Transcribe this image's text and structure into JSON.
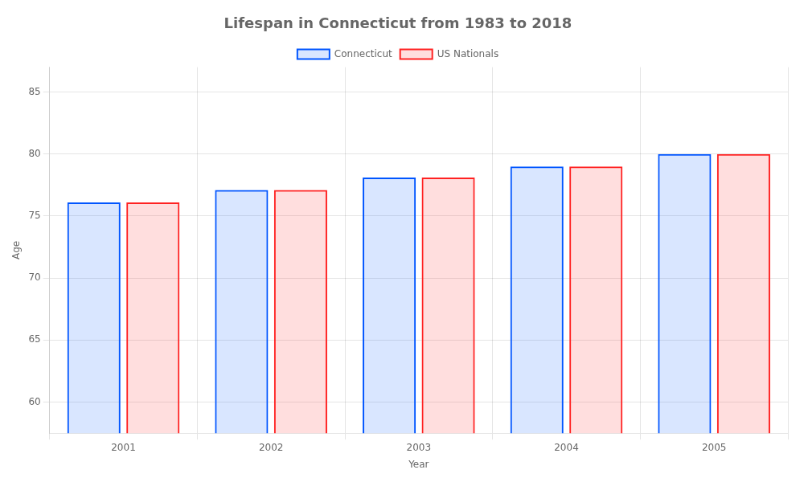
{
  "chart_data": {
    "type": "bar",
    "title": "Lifespan in Connecticut from 1983 to 2018",
    "x_label": "Year",
    "y_label": "Age",
    "categories": [
      "2001",
      "2002",
      "2003",
      "2004",
      "2005"
    ],
    "series": [
      {
        "name": "Connecticut",
        "color": "#0055ff",
        "values": [
          76.1,
          77.1,
          78.1,
          79.0,
          80.0
        ]
      },
      {
        "name": "US Nationals",
        "color": "#ff2222",
        "values": [
          76.1,
          77.1,
          78.1,
          79.0,
          80.0
        ]
      }
    ],
    "ylim": [
      57.5,
      87
    ],
    "yticks": [
      60,
      65,
      70,
      75,
      80,
      85
    ],
    "grid": true,
    "legend": "top"
  }
}
